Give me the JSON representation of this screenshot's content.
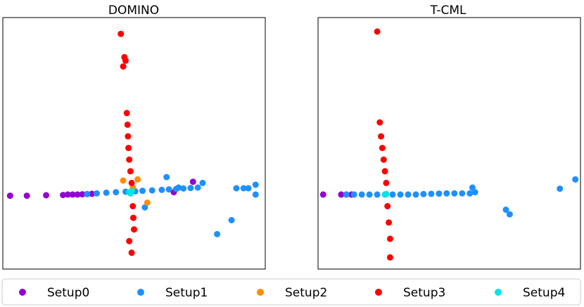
{
  "chart_data": [
    {
      "type": "scatter",
      "title": "DOMINO",
      "xlabel": "",
      "ylabel": "",
      "xlim": [
        -5.3,
        5.6
      ],
      "ylim": [
        -3.2,
        7.6
      ],
      "grid": false,
      "series": [
        {
          "name": "Setup0",
          "color": "#9400d3",
          "x": [
            -5.0,
            -4.3,
            -3.5,
            -2.8,
            -2.6,
            -2.4,
            -2.2,
            -2.0,
            -1.8,
            -1.6,
            1.8,
            2.6
          ],
          "y": [
            -0.05,
            -0.05,
            -0.03,
            -0.02,
            0.0,
            0.0,
            0.0,
            0.01,
            0.02,
            0.03,
            0.1,
            0.55
          ]
        },
        {
          "name": "Setup1",
          "color": "#1e90ff",
          "x": [
            -1.8,
            -1.4,
            -1.0,
            -0.6,
            -0.2,
            0.2,
            0.5,
            0.9,
            1.3,
            1.6,
            1.9,
            2.2,
            2.5,
            2.8,
            3.0,
            4.4,
            4.7,
            4.9,
            5.2,
            5.2,
            1.5,
            2.0,
            0.6,
            4.2,
            3.6
          ],
          "y": [
            0.02,
            0.05,
            0.08,
            0.1,
            0.12,
            0.14,
            0.16,
            0.18,
            0.2,
            0.22,
            0.24,
            0.26,
            0.28,
            0.3,
            0.5,
            0.27,
            0.27,
            0.27,
            0.42,
            0.0,
            0.75,
            0.3,
            -0.55,
            -1.1,
            -1.7
          ]
        },
        {
          "name": "Setup2",
          "color": "#ff8c00",
          "x": [
            -0.3,
            0.3,
            0.1,
            0.7
          ],
          "y": [
            0.6,
            0.65,
            0.3,
            -0.35
          ]
        },
        {
          "name": "Setup3",
          "color": "#ff0000",
          "x": [
            -0.4,
            -0.25,
            -0.2,
            -0.3,
            -0.15,
            -0.12,
            -0.1,
            -0.08,
            -0.05,
            0.0,
            0.05,
            0.1,
            0.12,
            0.15,
            -0.05,
            0.05
          ],
          "y": [
            6.9,
            5.9,
            5.75,
            5.5,
            3.5,
            3.0,
            2.5,
            2.0,
            1.5,
            1.0,
            0.5,
            -0.5,
            -1.0,
            -1.5,
            -2.0,
            -2.5
          ]
        },
        {
          "name": "Setup4",
          "color": "#00e5e5",
          "x": [
            -0.05,
            0.05,
            0.0
          ],
          "y": [
            0.1,
            0.15,
            0.05
          ]
        }
      ]
    },
    {
      "type": "scatter",
      "title": "T-CML",
      "xlabel": "",
      "ylabel": "",
      "xlim": [
        -2.6,
        7.6
      ],
      "ylim": [
        -3.2,
        7.6
      ],
      "grid": false,
      "series": [
        {
          "name": "Setup0",
          "color": "#9400d3",
          "x": [
            -2.4,
            -1.7,
            -1.5,
            -1.3
          ],
          "y": [
            0.0,
            0.0,
            0.0,
            0.0
          ]
        },
        {
          "name": "Setup1",
          "color": "#1e90ff",
          "x": [
            -1.5,
            -1.2,
            -0.9,
            -0.6,
            -0.3,
            0.0,
            0.3,
            0.6,
            0.9,
            1.2,
            1.5,
            1.8,
            2.1,
            2.4,
            2.7,
            3.0,
            3.3,
            3.4,
            3.5,
            4.7,
            4.85,
            6.8,
            7.4
          ],
          "y": [
            0.0,
            0.0,
            0.0,
            0.0,
            0.0,
            0.0,
            0.0,
            0.0,
            0.0,
            0.0,
            0.02,
            0.03,
            0.04,
            0.05,
            0.05,
            0.05,
            0.05,
            0.3,
            0.1,
            -0.65,
            -0.85,
            0.25,
            0.65
          ]
        },
        {
          "name": "Setup3",
          "color": "#ff0000",
          "x": [
            -0.3,
            -0.2,
            -0.15,
            -0.1,
            -0.05,
            0.0,
            0.05,
            0.1,
            0.15,
            0.2,
            0.2
          ],
          "y": [
            7.0,
            3.1,
            2.5,
            2.0,
            1.5,
            1.0,
            0.5,
            -0.5,
            -1.2,
            -1.9,
            -2.7
          ]
        },
        {
          "name": "Setup4",
          "color": "#00e5e5",
          "x": [
            0.0,
            0.05
          ],
          "y": [
            0.0,
            0.02
          ]
        }
      ]
    }
  ],
  "legend": {
    "placement": "bottom",
    "items": [
      {
        "label": "Setup0",
        "color": "#9400d3"
      },
      {
        "label": "Setup1",
        "color": "#1e90ff"
      },
      {
        "label": "Setup2",
        "color": "#ff8c00"
      },
      {
        "label": "Setup3",
        "color": "#ff0000"
      },
      {
        "label": "Setup4",
        "color": "#00e5e5"
      }
    ]
  }
}
